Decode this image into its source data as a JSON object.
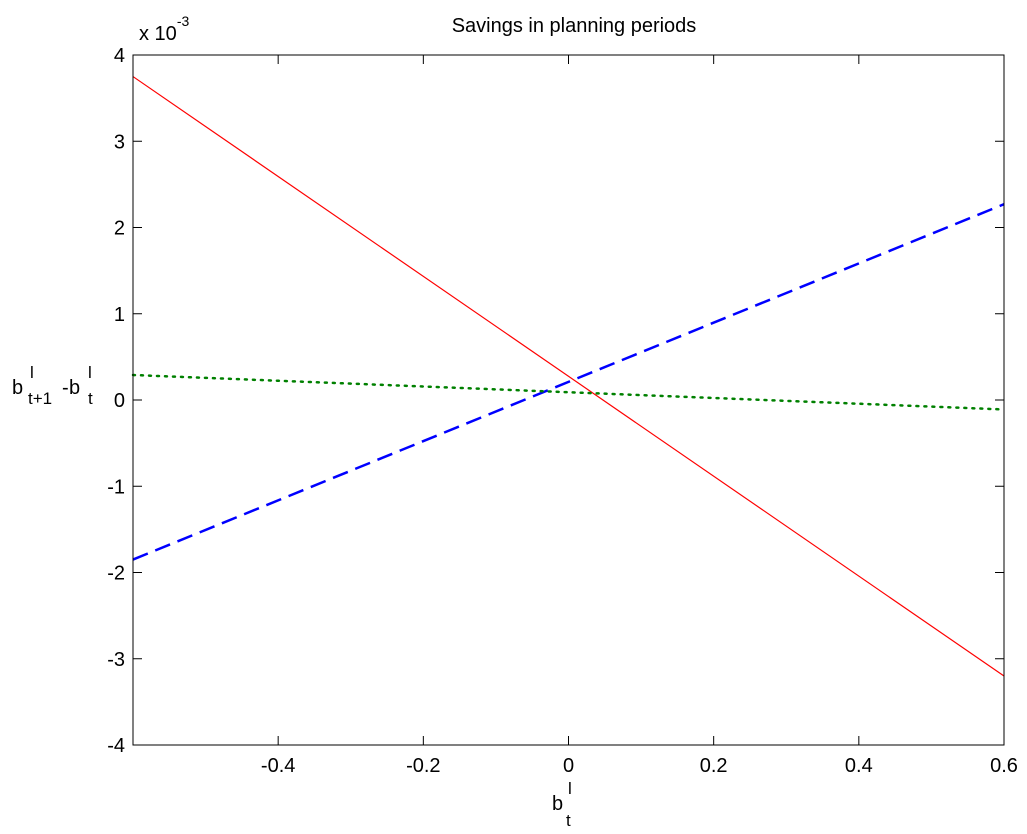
{
  "chart_data": {
    "type": "line",
    "title": "Savings in planning periods",
    "xlabel": {
      "base": "b",
      "sup": "l",
      "sub": "t"
    },
    "ylabel": {
      "part1_base": "b",
      "part1_sup": "l",
      "part1_sub": "t+1",
      "minus": "-",
      "part2_base": "b",
      "part2_sup": "l",
      "part2_sub": "t"
    },
    "y_multiplier": {
      "base": "x 10",
      "exponent": "-3"
    },
    "xlim": [
      -0.6,
      0.6
    ],
    "ylim": [
      -4,
      4
    ],
    "x_ticks": [
      -0.4,
      -0.2,
      0,
      0.2,
      0.4,
      0.6
    ],
    "x_tick_labels": [
      "-0.4",
      "-0.2",
      "0",
      "0.2",
      "0.4",
      "0.6"
    ],
    "y_ticks": [
      -4,
      -3,
      -2,
      -1,
      0,
      1,
      2,
      3,
      4
    ],
    "y_tick_labels": [
      "-4",
      "-3",
      "-2",
      "-1",
      "0",
      "1",
      "2",
      "3",
      "4"
    ],
    "grid": false,
    "series": [
      {
        "x": [
          -0.6,
          0.6
        ],
        "y": [
          3.75,
          -3.2
        ],
        "color": "#ff0000",
        "style": "solid"
      },
      {
        "x": [
          -0.6,
          0.6
        ],
        "y": [
          -1.85,
          2.27
        ],
        "color": "#0000ff",
        "style": "dashed"
      },
      {
        "x": [
          -0.6,
          0.6
        ],
        "y": [
          0.29,
          -0.11
        ],
        "color": "#008000",
        "style": "dotted"
      }
    ]
  }
}
